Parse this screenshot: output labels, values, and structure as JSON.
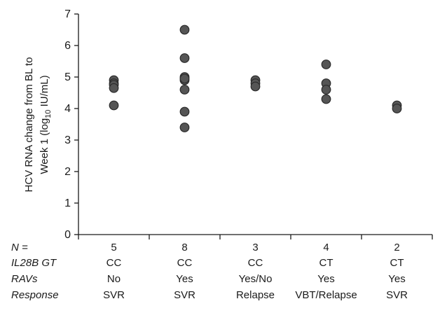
{
  "chart_data": {
    "type": "scatter",
    "ylabel_line1": "HCV RNA change from BL to",
    "ylabel_line2_pre": "Week 1 (log",
    "ylabel_line2_sub": "10",
    "ylabel_line2_post": " IU/mL)",
    "ylim": [
      0,
      7
    ],
    "yticks": [
      "0",
      "1",
      "2",
      "3",
      "4",
      "5",
      "6",
      "7"
    ],
    "grid": false,
    "groups": [
      {
        "n": "5",
        "gt": "CC",
        "ravs": "No",
        "response": "SVR",
        "values": [
          4.9,
          4.8,
          4.75,
          4.65,
          4.1
        ]
      },
      {
        "n": "8",
        "gt": "CC",
        "ravs": "Yes",
        "response": "SVR",
        "values": [
          6.5,
          5.6,
          5.0,
          4.9,
          4.6,
          3.9,
          3.4,
          4.95
        ]
      },
      {
        "n": "3",
        "gt": "CC",
        "ravs": "Yes/No",
        "response": "Relapse",
        "values": [
          4.9,
          4.8,
          4.7
        ]
      },
      {
        "n": "4",
        "gt": "CT",
        "ravs": "Yes",
        "response": "VBT/Relapse",
        "values": [
          5.4,
          4.8,
          4.6,
          4.3
        ]
      },
      {
        "n": "2",
        "gt": "CT",
        "ravs": "Yes",
        "response": "SVR",
        "values": [
          4.1,
          4.0
        ]
      }
    ],
    "row_labels": {
      "n": "N =",
      "gt": "IL28B GT",
      "ravs": "RAVs",
      "response": "Response"
    }
  }
}
